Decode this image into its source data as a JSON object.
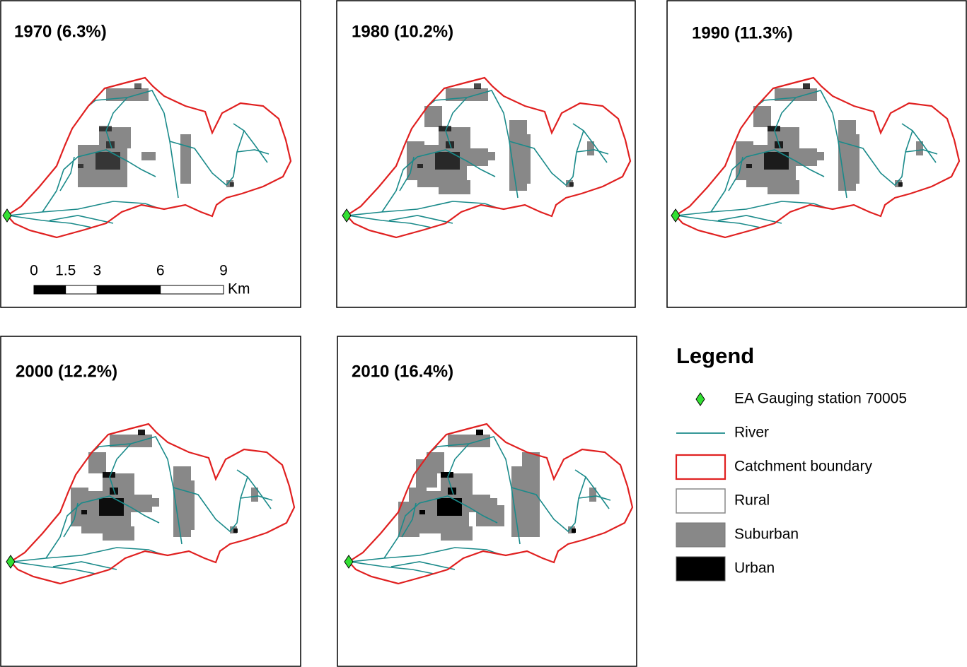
{
  "panels": [
    {
      "title": "1970 (6.3%)"
    },
    {
      "title": "1980 (10.2%)"
    },
    {
      "title": "1990 (11.3%)"
    },
    {
      "title": "2000 (12.2%)"
    },
    {
      "title": "2010 (16.4%)"
    }
  ],
  "scale_bar": {
    "ticks": [
      0,
      1.5,
      3,
      6,
      9
    ],
    "unit": "Km"
  },
  "legend": {
    "title": "Legend",
    "items": [
      "EA Gauging station 70005",
      "River",
      "Catchment boundary",
      "Rural",
      "Suburban",
      "Urban"
    ]
  }
}
